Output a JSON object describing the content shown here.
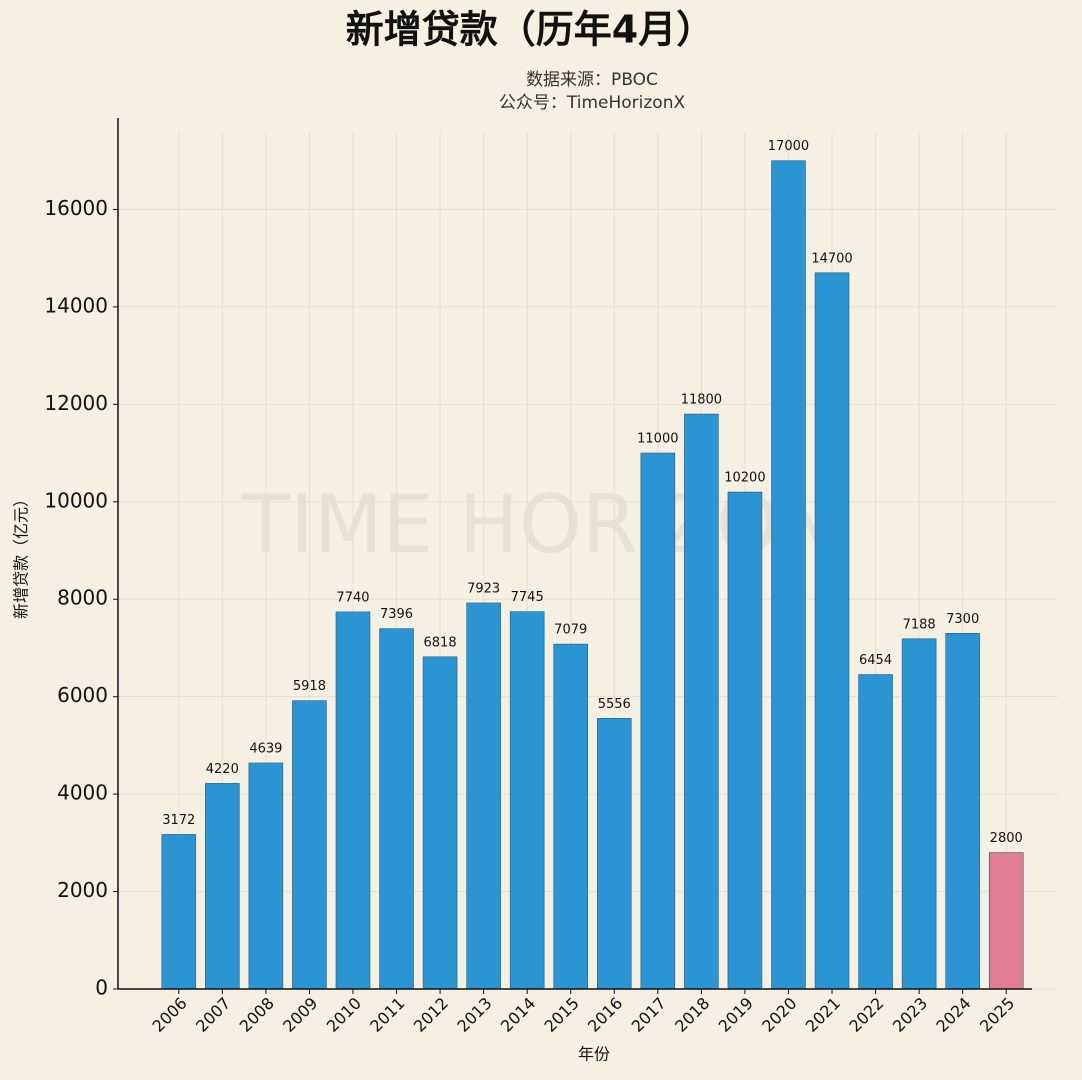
{
  "chart_data": {
    "type": "bar",
    "title": "新增贷款（历年4月）",
    "subtitle": [
      "数据来源：PBOC",
      "公众号：TimeHorizonX"
    ],
    "watermark": "TIME HORIZON",
    "x_label": "年份",
    "y_label": "新增贷款（亿元）",
    "categories": [
      "2006",
      "2007",
      "2008",
      "2009",
      "2010",
      "2011",
      "2012",
      "2013",
      "2014",
      "2015",
      "2016",
      "2017",
      "2018",
      "2019",
      "2020",
      "2021",
      "2022",
      "2023",
      "2024",
      "2025"
    ],
    "values": [
      3172,
      4220,
      4639,
      5918,
      7740,
      7396,
      6818,
      7923,
      7745,
      7079,
      5556,
      11000,
      11800,
      10200,
      17000,
      14700,
      6454,
      7188,
      7300,
      2800
    ],
    "colors": [
      "#2a95d2",
      "#2a95d2",
      "#2a95d2",
      "#2a95d2",
      "#2a95d2",
      "#2a95d2",
      "#2a95d2",
      "#2a95d2",
      "#2a95d2",
      "#2a95d2",
      "#2a95d2",
      "#2a95d2",
      "#2a95d2",
      "#2a95d2",
      "#2a95d2",
      "#2a95d2",
      "#2a95d2",
      "#2a95d2",
      "#2a95d2",
      "#e07d90"
    ],
    "ylim": [
      0,
      18000
    ],
    "yticks": [
      0,
      2000,
      4000,
      6000,
      8000,
      10000,
      12000,
      14000,
      16000
    ],
    "grid": true
  }
}
